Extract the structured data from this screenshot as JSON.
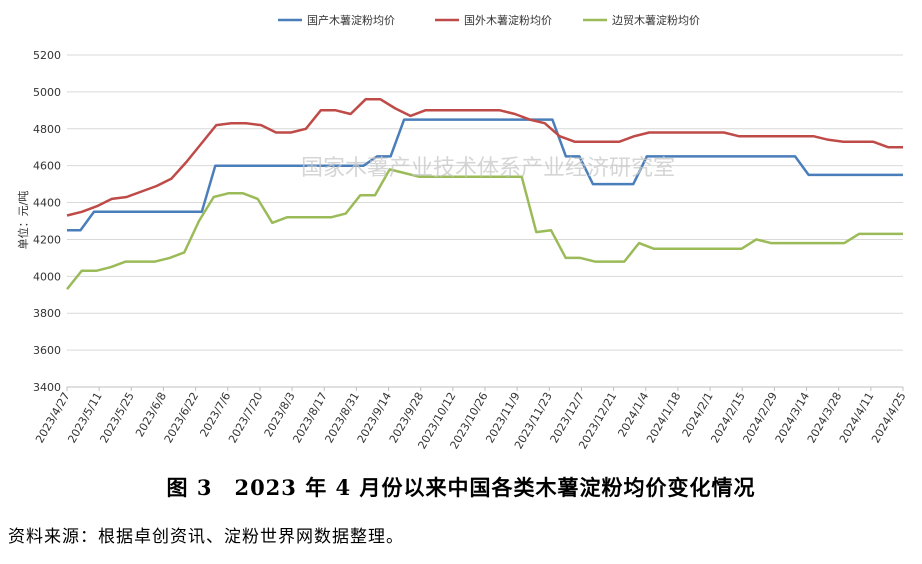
{
  "chart_data": {
    "type": "line",
    "title": "",
    "xlabel": "",
    "ylabel": "单位：元/吨",
    "ylim": [
      3400,
      5200
    ],
    "yticks": [
      3400,
      3600,
      3800,
      4000,
      4200,
      4400,
      4600,
      4800,
      5000,
      5200
    ],
    "grid": "horizontal",
    "legend_position": "top",
    "x_tick_labels": [
      "2023/4/27",
      "2023/5/11",
      "2023/5/25",
      "2023/6/8",
      "2023/6/22",
      "2023/7/6",
      "2023/7/20",
      "2023/8/3",
      "2023/8/17",
      "2023/8/31",
      "2023/9/14",
      "2023/9/28",
      "2023/10/12",
      "2023/10/26",
      "2023/11/9",
      "2023/11/23",
      "2023/12/7",
      "2023/12/21",
      "2024/1/4",
      "2024/1/18",
      "2024/2/1",
      "2024/2/15",
      "2024/2/29",
      "2024/3/14",
      "2024/3/28",
      "2024/4/11",
      "2024/4/25"
    ],
    "x_points_per_tick": 2,
    "series": [
      {
        "name": "国产木薯淀粉均价",
        "color": "#4a7ebb",
        "values": [
          4250,
          4250,
          4350,
          4350,
          4350,
          4350,
          4350,
          4350,
          4350,
          4350,
          4350,
          4600,
          4600,
          4600,
          4600,
          4600,
          4600,
          4600,
          4600,
          4600,
          4600,
          4600,
          4600,
          4650,
          4650,
          4850,
          4850,
          4850,
          4850,
          4850,
          4850,
          4850,
          4850,
          4850,
          4850,
          4850,
          4850,
          4650,
          4650,
          4500,
          4500,
          4500,
          4500,
          4650,
          4650,
          4650,
          4650,
          4650,
          4650,
          4650,
          4650,
          4650,
          4650,
          4650,
          4650,
          4550,
          4550,
          4550,
          4550,
          4550,
          4550,
          4550,
          4550
        ]
      },
      {
        "name": "国外木薯淀粉均价",
        "color": "#be4b48",
        "values": [
          4330,
          4350,
          4380,
          4420,
          4430,
          4460,
          4490,
          4530,
          4620,
          4720,
          4820,
          4830,
          4830,
          4820,
          4780,
          4780,
          4800,
          4900,
          4900,
          4880,
          4960,
          4960,
          4910,
          4870,
          4900,
          4900,
          4900,
          4900,
          4900,
          4900,
          4880,
          4850,
          4830,
          4760,
          4730,
          4730,
          4730,
          4730,
          4760,
          4780,
          4780,
          4780,
          4780,
          4780,
          4780,
          4760,
          4760,
          4760,
          4760,
          4760,
          4760,
          4740,
          4730,
          4730,
          4730,
          4700,
          4700
        ]
      },
      {
        "name": "边贸木薯淀粉均价",
        "color": "#9bbb59",
        "values": [
          3930,
          4030,
          4030,
          4050,
          4080,
          4080,
          4080,
          4100,
          4130,
          4300,
          4430,
          4450,
          4450,
          4420,
          4290,
          4320,
          4320,
          4320,
          4320,
          4340,
          4440,
          4440,
          4580,
          4560,
          4540,
          4540,
          4540,
          4540,
          4540,
          4540,
          4540,
          4540,
          4240,
          4250,
          4100,
          4100,
          4080,
          4080,
          4080,
          4180,
          4150,
          4150,
          4150,
          4150,
          4150,
          4150,
          4150,
          4200,
          4180,
          4180,
          4180,
          4180,
          4180,
          4180,
          4230,
          4230,
          4230,
          4230
        ]
      }
    ]
  },
  "watermark": "国家木薯产业技术体系产业经济研究室",
  "caption": "图 3　2023 年 4 月份以来中国各类木薯淀粉均价变化情况",
  "source": "资料来源：根据卓创资讯、淀粉世界网数据整理。"
}
